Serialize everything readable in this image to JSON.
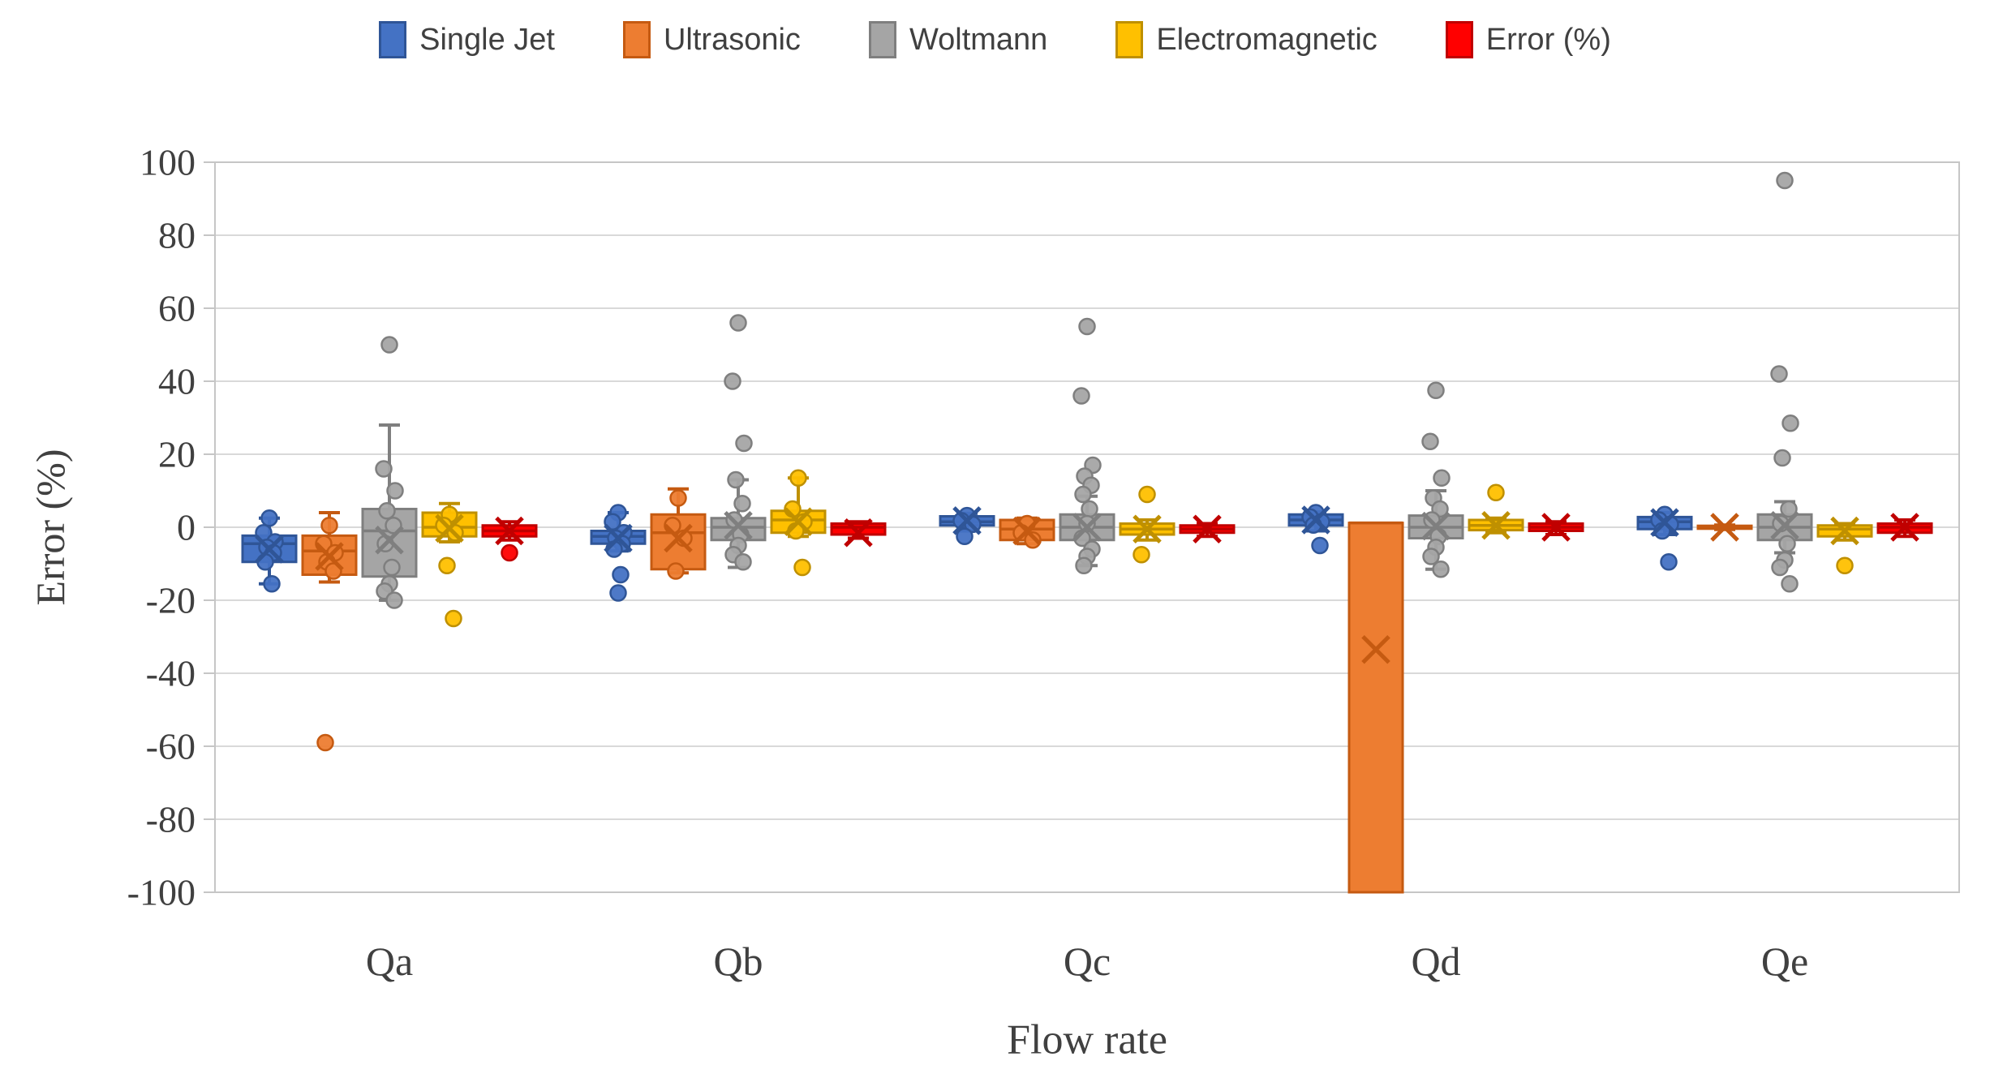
{
  "colors": {
    "grid": "#D9D9D9",
    "axis": "#C6C6C6",
    "text": "#404040"
  },
  "chart_data": {
    "type": "box",
    "title": "",
    "xlabel": "Flow rate",
    "ylabel": "Error (%)",
    "ylim": [
      -100,
      100
    ],
    "yticks": [
      100,
      80,
      60,
      40,
      20,
      0,
      -20,
      -40,
      -60,
      -80,
      -100
    ],
    "grid": true,
    "legend_position": "top",
    "categories": [
      "Qa",
      "Qb",
      "Qc",
      "Qd",
      "Qe"
    ],
    "series": [
      {
        "name": "Single Jet",
        "fill": "#4472C4",
        "stroke": "#2F5597",
        "boxes": [
          {
            "whisker_low": -15.5,
            "q1": -9.5,
            "median": -4.5,
            "q3": -2.3,
            "whisker_high": 2.5,
            "mean": -6
          },
          {
            "whisker_low": -6.5,
            "q1": -4.5,
            "median": -2.5,
            "q3": -1,
            "whisker_high": 4,
            "mean": -3
          },
          {
            "whisker_low": -1,
            "q1": 0.5,
            "median": 1.5,
            "q3": 3,
            "whisker_high": 3.8,
            "mean": 1.8
          },
          {
            "whisker_low": -1,
            "q1": 0.5,
            "median": 2,
            "q3": 3.5,
            "whisker_high": 4.2,
            "mean": 2
          },
          {
            "whisker_low": -2,
            "q1": -0.5,
            "median": 1.5,
            "q3": 2.8,
            "whisker_high": 4,
            "mean": 1.3
          }
        ],
        "points": [
          [
            2.5,
            -1.5,
            -4,
            -5.5,
            -7,
            -9.5,
            -15.5
          ],
          [
            4,
            1.5,
            -1.5,
            -3,
            -4.5,
            -6,
            -13,
            -18
          ],
          [
            3.2,
            1.8,
            0.8,
            -2.5
          ],
          [
            4,
            2.8,
            1.5,
            0.6,
            -5
          ],
          [
            3.5,
            2,
            0.8,
            -1,
            -9.5
          ]
        ]
      },
      {
        "name": "Ultrasonic",
        "fill": "#ED7D31",
        "stroke": "#C55A11",
        "boxes": [
          {
            "whisker_low": -15,
            "q1": -13,
            "median": -6.5,
            "q3": -2.3,
            "whisker_high": 4,
            "mean": -8
          },
          {
            "whisker_low": -12.5,
            "q1": -11.5,
            "median": -1.5,
            "q3": 3.5,
            "whisker_high": 10.5,
            "mean": -3
          },
          {
            "whisker_low": -4.5,
            "q1": -3.5,
            "median": -0.5,
            "q3": 2,
            "whisker_high": 2.5,
            "mean": -1
          },
          {
            "whisker_low": -100,
            "q1": -100,
            "median": 1.2,
            "q3": 1.2,
            "whisker_high": 1.2,
            "mean": -33.5
          },
          {
            "whisker_low": -0.6,
            "q1": -0.4,
            "median": 0,
            "q3": 0.4,
            "whisker_high": 0.6,
            "mean": 0
          }
        ],
        "points": [
          [
            0.5,
            -4.5,
            -7,
            -9.5,
            -12,
            -59
          ],
          [
            8,
            0.5,
            -3,
            -12
          ],
          [
            1,
            -1.5,
            -3.5
          ],
          [],
          []
        ]
      },
      {
        "name": "Woltmann",
        "fill": "#A5A5A5",
        "stroke": "#7F7F7F",
        "boxes": [
          {
            "whisker_low": -20,
            "q1": -13.5,
            "median": -1,
            "q3": 5,
            "whisker_high": 28,
            "mean": -3.5
          },
          {
            "whisker_low": -11,
            "q1": -3.5,
            "median": 0,
            "q3": 2.5,
            "whisker_high": 13,
            "mean": 0.5
          },
          {
            "whisker_low": -10.5,
            "q1": -3.5,
            "median": 0,
            "q3": 3.5,
            "whisker_high": 8.5,
            "mean": 0
          },
          {
            "whisker_low": -11.5,
            "q1": -3,
            "median": 0,
            "q3": 3.2,
            "whisker_high": 10,
            "mean": 0.3
          },
          {
            "whisker_low": -7,
            "q1": -3.5,
            "median": 0,
            "q3": 3.5,
            "whisker_high": 7,
            "mean": 0.5
          }
        ],
        "points": [
          [
            50,
            16,
            10,
            4.5,
            0.5,
            -4.5,
            -11,
            -15.5,
            -17.5,
            -20
          ],
          [
            56,
            40,
            23,
            13,
            6.5,
            2,
            -2,
            -5,
            -7.5,
            -9.5
          ],
          [
            55,
            36,
            17,
            14,
            11.5,
            9,
            5,
            1,
            -3,
            -6,
            -8,
            -10.5
          ],
          [
            37.5,
            23.5,
            13.5,
            8,
            5,
            2,
            -2.5,
            -5.5,
            -8,
            -11.5
          ],
          [
            95,
            42,
            28.5,
            19,
            5,
            1,
            -4.5,
            -9,
            -11,
            -15.5
          ]
        ]
      },
      {
        "name": "Electromagnetic",
        "fill": "#FFC000",
        "stroke": "#BF9000",
        "boxes": [
          {
            "whisker_low": -4,
            "q1": -2.5,
            "median": 0,
            "q3": 4,
            "whisker_high": 6.5,
            "mean": -0.3
          },
          {
            "whisker_low": -2.5,
            "q1": -1.5,
            "median": 2,
            "q3": 4.5,
            "whisker_high": 13.5,
            "mean": 1.5
          },
          {
            "whisker_low": -3.5,
            "q1": -2,
            "median": -0.5,
            "q3": 1,
            "whisker_high": 2,
            "mean": -0.5
          },
          {
            "whisker_low": -1.5,
            "q1": -0.8,
            "median": 0.5,
            "q3": 2,
            "whisker_high": 2.5,
            "mean": 0.5
          },
          {
            "whisker_low": -3.5,
            "q1": -2.5,
            "median": -0.5,
            "q3": 0.5,
            "whisker_high": 1,
            "mean": -1
          }
        ],
        "points": [
          [
            3.5,
            0.5,
            -1.5,
            -10.5,
            -25
          ],
          [
            13.5,
            5,
            1.5,
            -1,
            -11
          ],
          [
            9,
            -7.5
          ],
          [
            9.5
          ],
          [
            -10.5
          ]
        ]
      },
      {
        "name": "Error (%)",
        "fill": "#FF0000",
        "stroke": "#C00000",
        "boxes": [
          {
            "whisker_low": -3.5,
            "q1": -2.5,
            "median": -1,
            "q3": 0.5,
            "whisker_high": 1.5,
            "mean": -1
          },
          {
            "whisker_low": -3,
            "q1": -2,
            "median": 0,
            "q3": 1,
            "whisker_high": 1.5,
            "mean": -1.5
          },
          {
            "whisker_low": -2.5,
            "q1": -1.5,
            "median": -0.5,
            "q3": 0.5,
            "whisker_high": 1,
            "mean": -0.5
          },
          {
            "whisker_low": -2,
            "q1": -1,
            "median": 0,
            "q3": 1,
            "whisker_high": 1.5,
            "mean": 0
          },
          {
            "whisker_low": -2.5,
            "q1": -1.5,
            "median": 0,
            "q3": 1,
            "whisker_high": 2,
            "mean": 0
          }
        ],
        "points": [
          [
            -7
          ],
          [],
          [],
          [],
          []
        ]
      }
    ]
  }
}
